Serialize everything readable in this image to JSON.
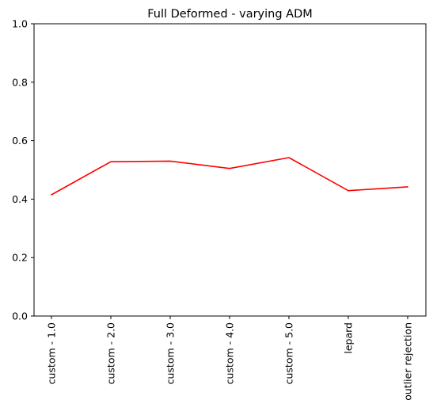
{
  "chart_data": {
    "type": "line",
    "title": "Full Deformed - varying ADM",
    "xlabel": "",
    "ylabel": "",
    "categories": [
      "custom - 1.0",
      "custom - 2.0",
      "custom - 3.0",
      "custom - 4.0",
      "custom - 5.0",
      "lepard",
      "outlier rejection"
    ],
    "series": [
      {
        "values": [
          0.415,
          0.528,
          0.53,
          0.505,
          0.542,
          0.429,
          0.442
        ],
        "color": "#ff0000"
      }
    ],
    "ylim": [
      0,
      1
    ],
    "yticks": [
      0.0,
      0.2,
      0.4,
      0.6,
      0.8,
      1.0
    ],
    "ytick_labels": [
      "0.0",
      "0.2",
      "0.4",
      "0.6",
      "0.8",
      "1.0"
    ],
    "grid": false,
    "legend": "none"
  }
}
